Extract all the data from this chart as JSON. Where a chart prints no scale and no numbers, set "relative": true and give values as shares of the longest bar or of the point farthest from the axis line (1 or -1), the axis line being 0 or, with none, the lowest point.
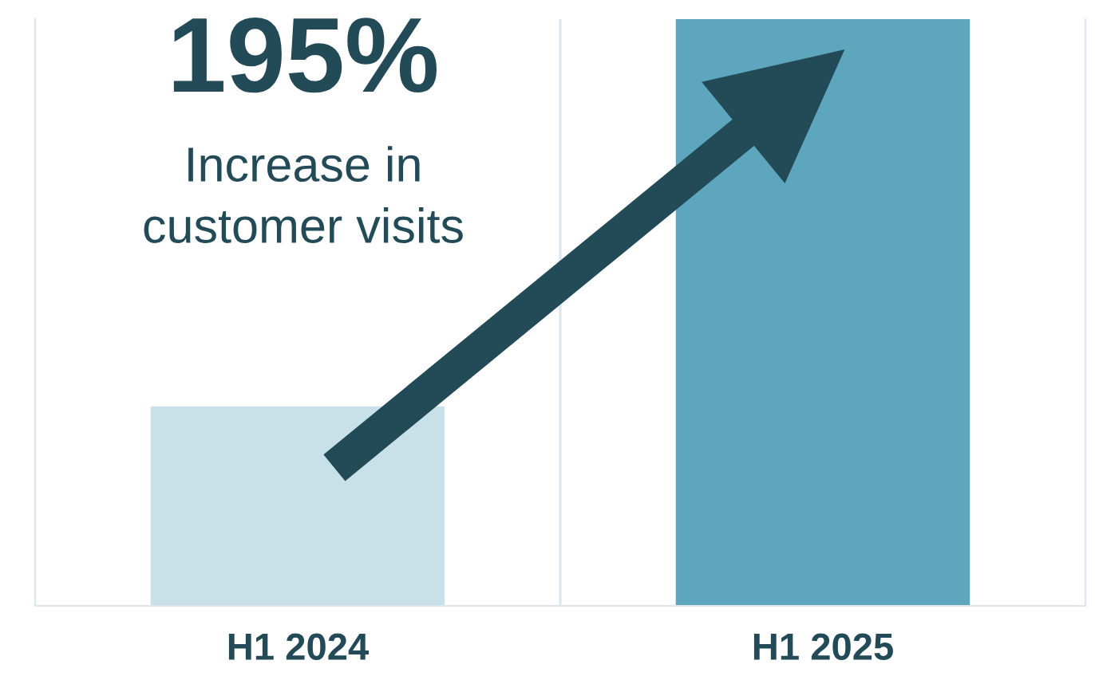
{
  "chart_data": {
    "type": "bar",
    "relative": true,
    "categories": [
      "H1 2024",
      "H1 2025"
    ],
    "values": [
      0.34,
      1
    ],
    "colors": [
      "#c8e1e8",
      "#5ea6bd"
    ],
    "annotations": [
      "195%",
      "Increase in\ncustomer visits"
    ],
    "grid": "x"
  }
}
